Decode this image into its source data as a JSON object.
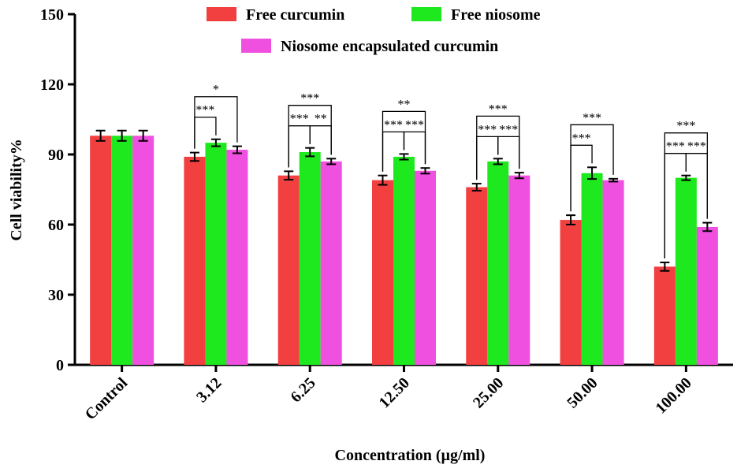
{
  "chart_data": {
    "type": "bar",
    "title": "",
    "xlabel": "Concentration (µg/ml)",
    "ylabel": "Cell viability%",
    "ylim": [
      0,
      150
    ],
    "yticks": [
      0,
      30,
      60,
      90,
      120,
      150
    ],
    "categories": [
      "Control",
      "3.12",
      "6.25",
      "12.50",
      "25.00",
      "50.00",
      "100.00"
    ],
    "series": [
      {
        "name": "Free curcumin",
        "color": "#f23f3f",
        "values": [
          98,
          89,
          81,
          79,
          76,
          62,
          42
        ],
        "errors": [
          2.2,
          1.8,
          1.8,
          2.0,
          1.5,
          2.0,
          1.8
        ]
      },
      {
        "name": "Free niosome",
        "color": "#1ee81e",
        "values": [
          98,
          95,
          91,
          89,
          87,
          82,
          80
        ],
        "errors": [
          2.2,
          1.5,
          1.8,
          1.2,
          1.2,
          2.5,
          1.0
        ]
      },
      {
        "name": "Niosome encapsulated curcumin",
        "color": "#f050e0",
        "values": [
          98,
          92,
          87,
          83,
          81,
          79,
          59
        ],
        "errors": [
          2.2,
          1.5,
          1.2,
          1.2,
          1.2,
          0.6,
          1.8
        ]
      }
    ],
    "significance": [
      {
        "category": 1,
        "from": 0,
        "to": 2,
        "label": "*"
      },
      {
        "category": 1,
        "from": 0,
        "to": 1,
        "label": "***"
      },
      {
        "category": 2,
        "from": 0,
        "to": 2,
        "label": "***"
      },
      {
        "category": 2,
        "from": 1,
        "to": 2,
        "label": "**"
      },
      {
        "category": 2,
        "from": 0,
        "to": 1,
        "label": "***"
      },
      {
        "category": 3,
        "from": 0,
        "to": 2,
        "label": "**"
      },
      {
        "category": 3,
        "from": 1,
        "to": 2,
        "label": "***"
      },
      {
        "category": 3,
        "from": 0,
        "to": 1,
        "label": "***"
      },
      {
        "category": 4,
        "from": 0,
        "to": 2,
        "label": "***"
      },
      {
        "category": 4,
        "from": 1,
        "to": 2,
        "label": "***"
      },
      {
        "category": 4,
        "from": 0,
        "to": 1,
        "label": "***"
      },
      {
        "category": 5,
        "from": 0,
        "to": 2,
        "label": "***"
      },
      {
        "category": 5,
        "from": 0,
        "to": 1,
        "label": "***"
      },
      {
        "category": 6,
        "from": 0,
        "to": 2,
        "label": "***"
      },
      {
        "category": 6,
        "from": 1,
        "to": 2,
        "label": "***"
      },
      {
        "category": 6,
        "from": 0,
        "to": 1,
        "label": "***"
      }
    ],
    "legend_position": "top"
  }
}
